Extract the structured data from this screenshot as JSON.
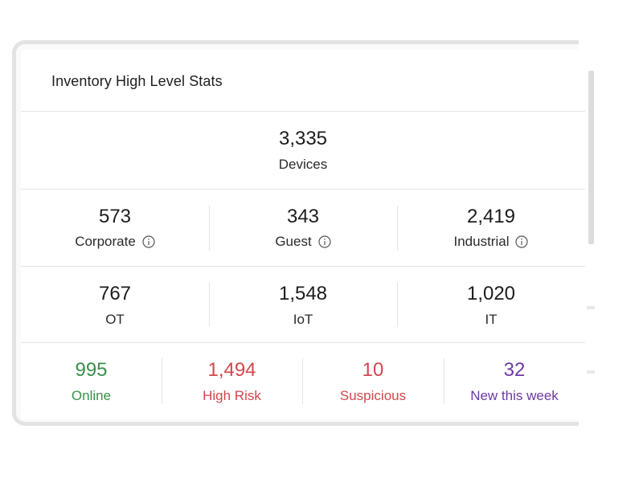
{
  "card": {
    "title": "Inventory High Level Stats"
  },
  "total": {
    "value": "3,335",
    "label": "Devices"
  },
  "categories": [
    {
      "value": "573",
      "label": "Corporate",
      "icon": "info-icon"
    },
    {
      "value": "343",
      "label": "Guest",
      "icon": "info-icon"
    },
    {
      "value": "2,419",
      "label": "Industrial",
      "icon": "info-icon"
    }
  ],
  "types": [
    {
      "value": "767",
      "label": "OT"
    },
    {
      "value": "1,548",
      "label": "IoT"
    },
    {
      "value": "1,020",
      "label": "IT"
    }
  ],
  "status": [
    {
      "value": "995",
      "label": "Online",
      "color": "#3a8f4b"
    },
    {
      "value": "1,494",
      "label": "High Risk",
      "color": "#d1474c"
    },
    {
      "value": "10",
      "label": "Suspicious",
      "color": "#d1474c"
    },
    {
      "value": "32",
      "label": "New this week",
      "color": "#6b3aa3"
    }
  ]
}
